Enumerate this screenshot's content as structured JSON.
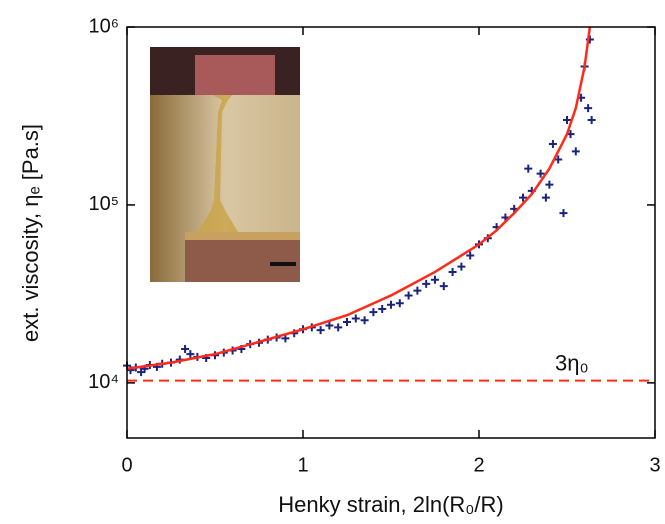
{
  "chart_data": {
    "type": "scatter",
    "x_label": "Henky strain, 2ln(R₀/R)",
    "y_label": "ext. viscosity, ηₑ [Pa.s]",
    "xlim": [
      0,
      3
    ],
    "xticks": [
      0,
      1,
      2,
      3
    ],
    "ylim": [
      4900,
      1000000
    ],
    "log_y": true,
    "yticks": [
      {
        "value": 10000,
        "label": "10⁴"
      },
      {
        "value": 100000,
        "label": "10⁵"
      },
      {
        "value": 1000000,
        "label": "10⁶"
      }
    ],
    "series": [
      {
        "type": "scatter",
        "color": "#1a237e",
        "x": [
          0.0,
          0.02,
          0.05,
          0.08,
          0.1,
          0.13,
          0.17,
          0.2,
          0.25,
          0.3,
          0.33,
          0.36,
          0.4,
          0.45,
          0.5,
          0.55,
          0.6,
          0.65,
          0.7,
          0.75,
          0.8,
          0.85,
          0.9,
          0.95,
          1.0,
          1.05,
          1.1,
          1.15,
          1.2,
          1.25,
          1.3,
          1.35,
          1.4,
          1.45,
          1.5,
          1.55,
          1.6,
          1.65,
          1.7,
          1.75,
          1.8,
          1.85,
          1.9,
          1.95,
          2.0,
          2.05,
          2.1,
          2.15,
          2.2,
          2.25,
          2.28,
          2.3,
          2.35,
          2.38,
          2.4,
          2.42,
          2.45,
          2.48,
          2.5,
          2.52,
          2.55,
          2.58,
          2.6,
          2.62,
          2.63,
          2.64
        ],
        "values": [
          12500,
          11800,
          12200,
          11500,
          12000,
          12600,
          12300,
          12800,
          13000,
          13500,
          15500,
          14500,
          14000,
          13800,
          14300,
          14800,
          15200,
          15500,
          16500,
          16800,
          17500,
          18000,
          17800,
          19000,
          20000,
          20500,
          19800,
          21000,
          20500,
          22000,
          23000,
          22500,
          25000,
          26000,
          27500,
          28000,
          31000,
          33000,
          36000,
          38000,
          35000,
          42000,
          45000,
          52000,
          60000,
          65000,
          75000,
          85000,
          95000,
          110000,
          160000,
          120000,
          150000,
          110000,
          130000,
          220000,
          180000,
          90000,
          300000,
          250000,
          200000,
          400000,
          600000,
          350000,
          850000,
          300000
        ]
      },
      {
        "type": "line",
        "color": "#ff2a1a",
        "x": [
          0,
          0.25,
          0.5,
          0.75,
          1,
          1.25,
          1.5,
          1.75,
          2,
          2.1,
          2.2,
          2.3,
          2.4,
          2.5,
          2.55,
          2.6,
          2.63
        ],
        "values": [
          12000,
          13000,
          14500,
          17000,
          20000,
          24000,
          31000,
          42000,
          60000,
          72000,
          90000,
          115000,
          160000,
          250000,
          350000,
          600000,
          1000000
        ]
      }
    ],
    "reference_line": {
      "value": 10300,
      "label": "3η₀",
      "color": "#ff2a1a",
      "dashed": true
    }
  }
}
